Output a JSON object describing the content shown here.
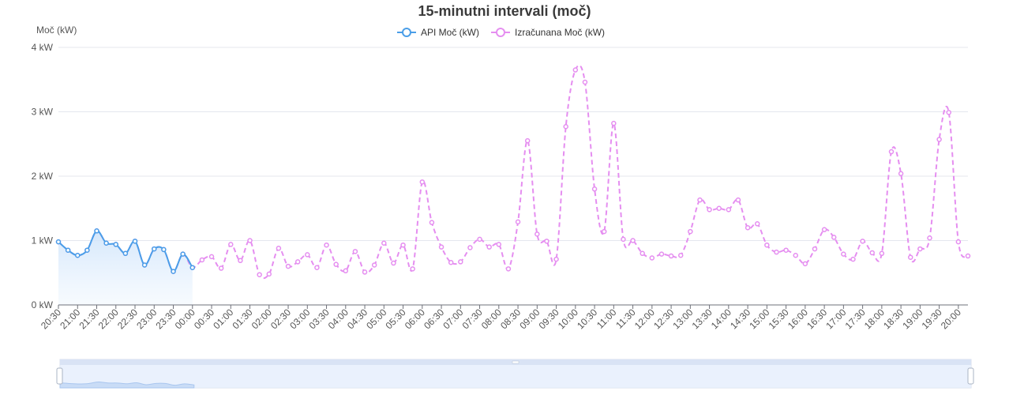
{
  "chart_data": {
    "type": "line",
    "title": "15-minutni intervali (moč)",
    "ylabel": "Moč (kW)",
    "ylim": [
      0,
      4
    ],
    "yticks": [
      "0 kW",
      "1 kW",
      "2 kW",
      "3 kW",
      "4 kW"
    ],
    "legend_position": "top-center",
    "grid": true,
    "x_labels": [
      "20:30",
      "21:00",
      "21:30",
      "22:00",
      "22:30",
      "23:00",
      "23:30",
      "00:00",
      "00:30",
      "01:00",
      "01:30",
      "02:00",
      "02:30",
      "03:00",
      "03:30",
      "04:00",
      "04:30",
      "05:00",
      "05:30",
      "06:00",
      "06:30",
      "07:00",
      "07:30",
      "08:00",
      "08:30",
      "09:00",
      "09:30",
      "10:00",
      "10:30",
      "11:00",
      "11:30",
      "12:00",
      "12:30",
      "13:00",
      "13:30",
      "14:00",
      "14:30",
      "15:00",
      "15:30",
      "16:00",
      "16:30",
      "17:00",
      "17:30",
      "18:00",
      "18:30",
      "19:00",
      "19:30",
      "20:00"
    ],
    "series": [
      {
        "name": "API Moč (kW)",
        "color": "#4a9ee8",
        "style": "solid",
        "area": true,
        "values": [
          0.98,
          0.85,
          0.77,
          0.85,
          1.15,
          0.96,
          0.94,
          0.8,
          0.99,
          0.62,
          0.87,
          0.86,
          0.52,
          0.79,
          0.58
        ]
      },
      {
        "name": "Izračunana Moč (kW)",
        "color": "#e58ef0",
        "style": "dashed",
        "area": false,
        "values": [
          0.98,
          0.85,
          0.77,
          0.85,
          1.15,
          0.96,
          0.94,
          0.8,
          0.99,
          0.62,
          0.87,
          0.86,
          0.52,
          0.79,
          0.58,
          0.7,
          0.75,
          0.57,
          0.94,
          0.69,
          1.0,
          0.47,
          0.48,
          0.88,
          0.6,
          0.67,
          0.78,
          0.58,
          0.93,
          0.63,
          0.53,
          0.83,
          0.51,
          0.62,
          0.96,
          0.65,
          0.93,
          0.56,
          1.91,
          1.28,
          0.9,
          0.66,
          0.67,
          0.89,
          1.02,
          0.9,
          0.94,
          0.56,
          1.29,
          2.55,
          1.1,
          0.99,
          0.71,
          2.77,
          3.65,
          3.46,
          1.8,
          1.14,
          2.82,
          1.02,
          1.0,
          0.8,
          0.73,
          0.79,
          0.76,
          0.77,
          1.14,
          1.63,
          1.48,
          1.5,
          1.48,
          1.63,
          1.2,
          1.26,
          0.93,
          0.82,
          0.85,
          0.77,
          0.64,
          0.87,
          1.17,
          1.05,
          0.79,
          0.71,
          0.99,
          0.81,
          0.8,
          2.38,
          2.04,
          0.74,
          0.87,
          1.04,
          2.57,
          2.99,
          0.98,
          0.76
        ]
      }
    ]
  }
}
